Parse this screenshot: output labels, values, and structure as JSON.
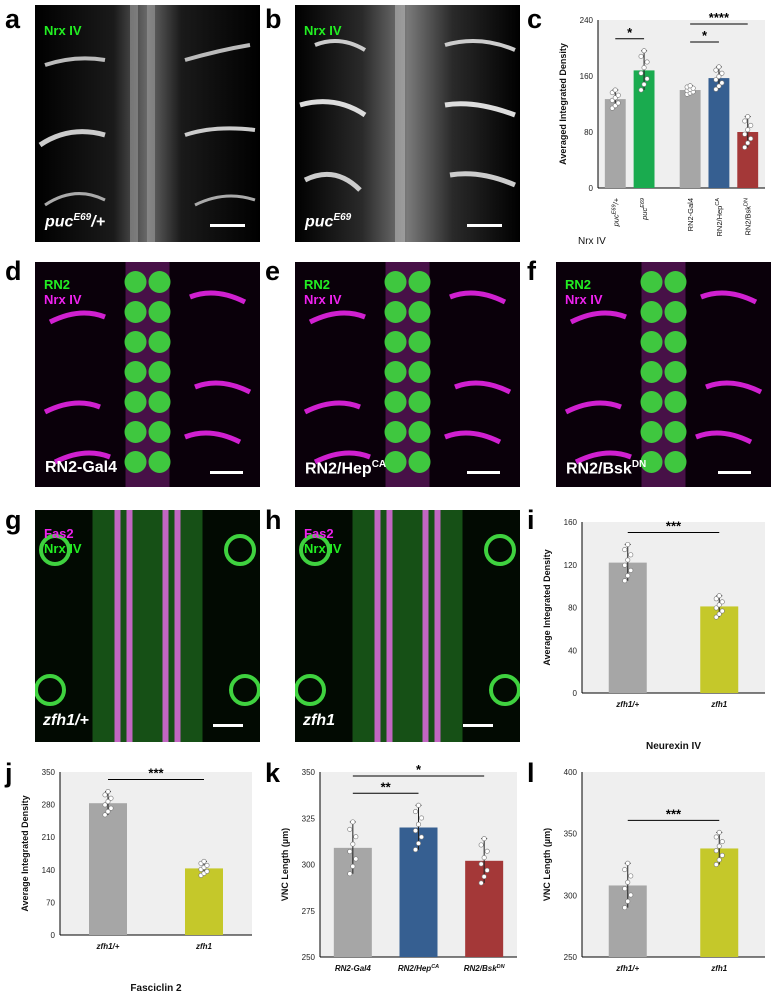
{
  "panels": {
    "a": {
      "letter": "a",
      "channels": [
        "Nrx IV"
      ],
      "genotype_base": "puc",
      "genotype_sup": "E69",
      "genotype_tail": "/+"
    },
    "b": {
      "letter": "b",
      "channels": [
        "Nrx IV"
      ],
      "genotype_base": "puc",
      "genotype_sup": "E69",
      "genotype_tail": ""
    },
    "c": {
      "letter": "c"
    },
    "d": {
      "letter": "d",
      "channels": [
        "RN2",
        "Nrx IV"
      ],
      "genotype_base": "RN2-Gal4",
      "genotype_sup": "",
      "genotype_tail": ""
    },
    "e": {
      "letter": "e",
      "channels": [
        "RN2",
        "Nrx IV"
      ],
      "genotype_base": "RN2/Hep",
      "genotype_sup": "CA",
      "genotype_tail": ""
    },
    "f": {
      "letter": "f",
      "channels": [
        "RN2",
        "Nrx IV"
      ],
      "genotype_base": "RN2/Bsk",
      "genotype_sup": "DN",
      "genotype_tail": ""
    },
    "g": {
      "letter": "g",
      "channels": [
        "Fas2",
        "Nrx IV"
      ],
      "genotype_base": "zfh1/+",
      "genotype_sup": "",
      "genotype_tail": ""
    },
    "h": {
      "letter": "h",
      "channels": [
        "Fas2",
        "Nrx IV"
      ],
      "genotype_base": "zfh1",
      "genotype_sup": "",
      "genotype_tail": ""
    },
    "i": {
      "letter": "i"
    },
    "j": {
      "letter": "j"
    },
    "k": {
      "letter": "k"
    },
    "l": {
      "letter": "l"
    }
  },
  "colors": {
    "green": "#22ee22",
    "magenta": "#ee22ee",
    "gray": "#a6a6a6",
    "green_bar": "#1aab4f",
    "blue_bar": "#365f91",
    "red_bar": "#a43838",
    "yellow_bar": "#c5c82a",
    "plot_bg": "#efefef"
  },
  "chart_data": [
    {
      "id": "c",
      "type": "bar",
      "ylabel": "Averaged Integrated Density",
      "xlabel": "Nrx IV",
      "ylim": [
        0,
        240
      ],
      "yticks": [
        0,
        80,
        160,
        240
      ],
      "categories": [
        {
          "base": "puc",
          "sup": "E69",
          "tail": "/+",
          "value": 127,
          "err": 13,
          "color": "#a6a6a6",
          "italic": true
        },
        {
          "base": "puc",
          "sup": "E69",
          "tail": "",
          "value": 168,
          "err": 28,
          "color": "#1aab4f",
          "italic": true
        },
        {
          "base": "RN2-Gal4",
          "sup": "",
          "tail": "",
          "value": 140,
          "err": 6,
          "color": "#a6a6a6",
          "italic": false
        },
        {
          "base": "RN2/Hep",
          "sup": "CA",
          "tail": "",
          "value": 157,
          "err": 16,
          "color": "#365f91",
          "italic": false
        },
        {
          "base": "RN2/Bsk",
          "sup": "DN",
          "tail": "",
          "value": 80,
          "err": 22,
          "color": "#a43838",
          "italic": false
        }
      ],
      "significance": [
        {
          "from": 0,
          "to": 1,
          "label": "*"
        },
        {
          "from": 2,
          "to": 4,
          "label": "****"
        },
        {
          "from": 2,
          "to": 3,
          "label": "*"
        }
      ]
    },
    {
      "id": "i",
      "type": "bar",
      "ylabel": "Average Integrated Density",
      "xlabel": "Neurexin IV",
      "ylim": [
        0,
        160
      ],
      "yticks": [
        0,
        40,
        80,
        120,
        160
      ],
      "categories": [
        {
          "base": "zfh1/+",
          "sup": "",
          "tail": "",
          "value": 122,
          "err": 17,
          "color": "#a6a6a6",
          "italic": true
        },
        {
          "base": "zfh1",
          "sup": "",
          "tail": "",
          "value": 81,
          "err": 10,
          "color": "#c5c82a",
          "italic": true
        }
      ],
      "significance": [
        {
          "from": 0,
          "to": 1,
          "label": "***"
        }
      ]
    },
    {
      "id": "j",
      "type": "bar",
      "ylabel": "Average Integrated Density",
      "xlabel": "Fasciclin 2",
      "ylim": [
        0,
        350
      ],
      "yticks": [
        0,
        70,
        140,
        210,
        280,
        350
      ],
      "categories": [
        {
          "base": "zfh1/+",
          "sup": "",
          "tail": "",
          "value": 283,
          "err": 25,
          "color": "#a6a6a6",
          "italic": true
        },
        {
          "base": "zfh1",
          "sup": "",
          "tail": "",
          "value": 143,
          "err": 15,
          "color": "#c5c82a",
          "italic": true
        }
      ],
      "significance": [
        {
          "from": 0,
          "to": 1,
          "label": "***"
        }
      ]
    },
    {
      "id": "k",
      "type": "bar",
      "ylabel": "VNC Length (µm)",
      "xlabel": "",
      "ylim": [
        250,
        350
      ],
      "yticks": [
        250,
        275,
        300,
        325,
        350
      ],
      "categories": [
        {
          "base": "RN2-Gal4",
          "sup": "",
          "tail": "",
          "value": 309,
          "err": 14,
          "color": "#a6a6a6",
          "italic": true
        },
        {
          "base": "RN2/Hep",
          "sup": "CA",
          "tail": "",
          "value": 320,
          "err": 12,
          "color": "#365f91",
          "italic": true
        },
        {
          "base": "RN2/Bsk",
          "sup": "DN",
          "tail": "",
          "value": 302,
          "err": 12,
          "color": "#a43838",
          "italic": true
        }
      ],
      "significance": [
        {
          "from": 0,
          "to": 1,
          "label": "**"
        },
        {
          "from": 0,
          "to": 2,
          "label": "*"
        }
      ]
    },
    {
      "id": "l",
      "type": "bar",
      "ylabel": "VNC Length (µm)",
      "xlabel": "",
      "ylim": [
        250,
        400
      ],
      "yticks": [
        250,
        300,
        350,
        400
      ],
      "categories": [
        {
          "base": "zfh1/+",
          "sup": "",
          "tail": "",
          "value": 308,
          "err": 18,
          "color": "#a6a6a6",
          "italic": true
        },
        {
          "base": "zfh1",
          "sup": "",
          "tail": "",
          "value": 338,
          "err": 13,
          "color": "#c5c82a",
          "italic": true
        }
      ],
      "significance": [
        {
          "from": 0,
          "to": 1,
          "label": "***"
        }
      ]
    }
  ]
}
